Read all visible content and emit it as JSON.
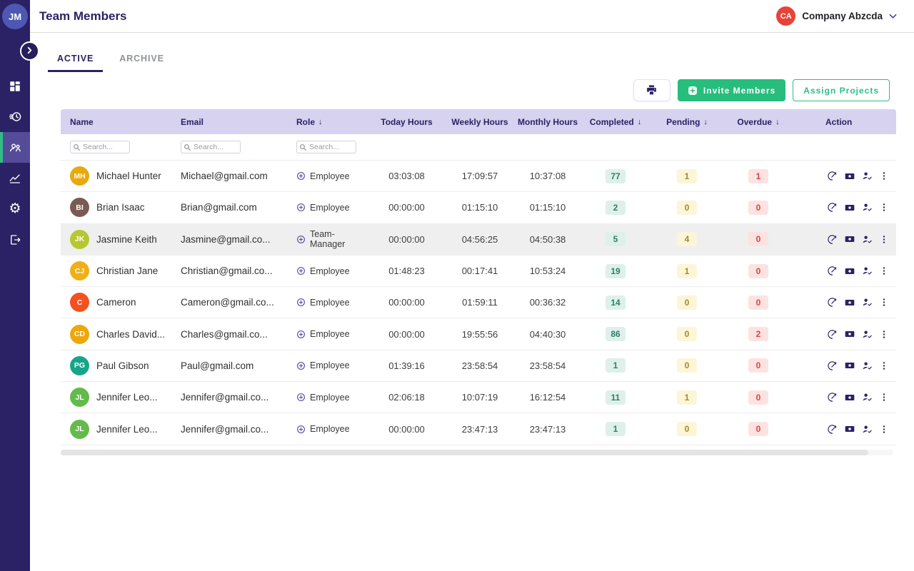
{
  "header": {
    "title": "Team Members",
    "user_initials": "JM",
    "company_initials": "CA",
    "company_name": "Company Abzcda"
  },
  "sidebar": {
    "items": [
      {
        "name": "dashboard",
        "active": false
      },
      {
        "name": "timesheets",
        "active": false
      },
      {
        "name": "team",
        "active": true
      },
      {
        "name": "reports",
        "active": false
      },
      {
        "name": "settings",
        "active": false
      },
      {
        "name": "logout",
        "active": false
      }
    ]
  },
  "tabs": [
    {
      "label": "ACTIVE",
      "active": true
    },
    {
      "label": "ARCHIVE",
      "active": false
    }
  ],
  "toolbar": {
    "invite_label": "Invite Members",
    "assign_label": "Assign Projects"
  },
  "table": {
    "search_placeholder": "Search...",
    "columns": [
      {
        "label": "Name",
        "sort": false
      },
      {
        "label": "Email",
        "sort": false
      },
      {
        "label": "Role",
        "sort": true
      },
      {
        "label": "Today Hours",
        "sort": false
      },
      {
        "label": "Weekly Hours",
        "sort": false
      },
      {
        "label": "Monthly Hours",
        "sort": false
      },
      {
        "label": "Completed",
        "sort": true
      },
      {
        "label": "Pending",
        "sort": true
      },
      {
        "label": "Overdue",
        "sort": true
      },
      {
        "label": "Action",
        "sort": false
      }
    ],
    "rows": [
      {
        "initials": "MH",
        "avatar_color": "#e9a90c",
        "name": "Michael Hunter",
        "email": "Michael@gmail.com",
        "role": "Employee",
        "today": "03:03:08",
        "weekly": "17:09:57",
        "monthly": "10:37:08",
        "completed": "77",
        "pending": "1",
        "overdue": "1",
        "highlighted": false
      },
      {
        "initials": "BI",
        "avatar_color": "#7a5b51",
        "name": "Brian Isaac",
        "email": "Brian@gmail.com",
        "role": "Employee",
        "today": "00:00:00",
        "weekly": "01:15:10",
        "monthly": "01:15:10",
        "completed": "2",
        "pending": "0",
        "overdue": "0",
        "highlighted": false
      },
      {
        "initials": "JK",
        "avatar_color": "#b5c92f",
        "name": "Jasmine Keith",
        "email": "Jasmine@gmail.co...",
        "role": "Team-Manager",
        "today": "00:00:00",
        "weekly": "04:56:25",
        "monthly": "04:50:38",
        "completed": "5",
        "pending": "4",
        "overdue": "0",
        "highlighted": true
      },
      {
        "initials": "CJ",
        "avatar_color": "#f0af14",
        "name": "Christian Jane",
        "email": "Christian@gmail.co...",
        "role": "Employee",
        "today": "01:48:23",
        "weekly": "00:17:41",
        "monthly": "10:53:24",
        "completed": "19",
        "pending": "1",
        "overdue": "0",
        "highlighted": false
      },
      {
        "initials": "C",
        "avatar_color": "#f4511e",
        "name": "Cameron",
        "email": "Cameron@gmail.co...",
        "role": "Employee",
        "today": "00:00:00",
        "weekly": "01:59:11",
        "monthly": "00:36:32",
        "completed": "14",
        "pending": "0",
        "overdue": "0",
        "highlighted": false
      },
      {
        "initials": "CD",
        "avatar_color": "#eca70b",
        "name": "Charles David...",
        "email": "Charles@gmail.co...",
        "role": "Employee",
        "today": "00:00:00",
        "weekly": "19:55:56",
        "monthly": "04:40:30",
        "completed": "86",
        "pending": "0",
        "overdue": "2",
        "highlighted": false
      },
      {
        "initials": "PG",
        "avatar_color": "#17a589",
        "name": "Paul Gibson",
        "email": "Paul@gmail.com",
        "role": "Employee",
        "today": "01:39:16",
        "weekly": "23:58:54",
        "monthly": "23:58:54",
        "completed": "1",
        "pending": "0",
        "overdue": "0",
        "highlighted": false
      },
      {
        "initials": "JL",
        "avatar_color": "#64ba4b",
        "name": "Jennifer Leo...",
        "email": "Jennifer@gmail.co...",
        "role": "Employee",
        "today": "02:06:18",
        "weekly": "10:07:19",
        "monthly": "16:12:54",
        "completed": "11",
        "pending": "1",
        "overdue": "0",
        "highlighted": false
      },
      {
        "initials": "JL",
        "avatar_color": "#64ba4b",
        "name": "Jennifer Leo...",
        "email": "Jennifer@gmail.co...",
        "role": "Employee",
        "today": "00:00:00",
        "weekly": "23:47:13",
        "monthly": "23:47:13",
        "completed": "1",
        "pending": "0",
        "overdue": "0",
        "highlighted": false
      }
    ]
  },
  "colors": {
    "sidebar": "#2a2264",
    "sidebar_active_bg": "#554c99",
    "sidebar_active_stripe": "#2ebd85",
    "navy": "#292364",
    "accent_green": "#27bd7d",
    "table_header_bg": "#d6d2ef",
    "row_highlight": "#efefef",
    "user_avatar": "#4d58b4",
    "company_avatar": "#e84338",
    "badge_completed_bg": "#def0ea",
    "badge_completed_text": "#2e7f6b",
    "badge_pending_bg": "#fcf5d8",
    "badge_pending_text": "#9d8d25",
    "badge_overdue_bg": "#fce3e2",
    "badge_overdue_text": "#e3403c"
  }
}
